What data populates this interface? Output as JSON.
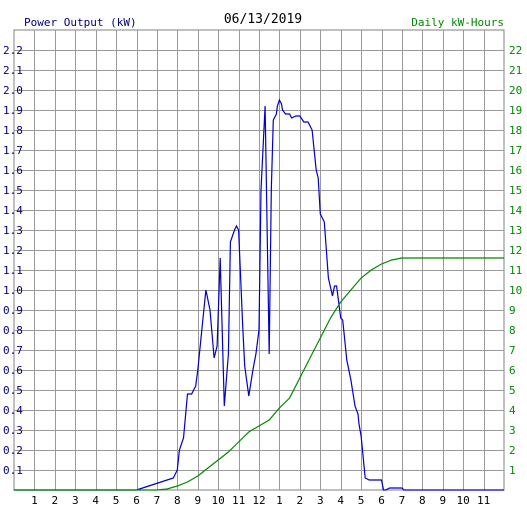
{
  "chart_data": {
    "type": "line",
    "title": "06/13/2019",
    "left_axis_label": "Power Output (kW)",
    "right_axis_label": "Daily kW-Hours",
    "x_ticks": [
      "1",
      "2",
      "3",
      "4",
      "5",
      "6",
      "7",
      "8",
      "9",
      "10",
      "11",
      "12",
      "1",
      "2",
      "3",
      "4",
      "5",
      "6",
      "7",
      "8",
      "9",
      "10",
      "11"
    ],
    "x_range": [
      0,
      24
    ],
    "y_left_ticks": [
      "0.1",
      "0.2",
      "0.3",
      "0.4",
      "0.5",
      "0.6",
      "0.7",
      "0.8",
      "0.9",
      "1.0",
      "1.1",
      "1.2",
      "1.3",
      "1.4",
      "1.5",
      "1.6",
      "1.7",
      "1.8",
      "1.9",
      "2.0",
      "2.1",
      "2.2"
    ],
    "y_left_range": [
      0,
      2.3
    ],
    "y_right_ticks": [
      "1",
      "2",
      "3",
      "4",
      "5",
      "6",
      "7",
      "8",
      "9",
      "10",
      "11",
      "12",
      "13",
      "14",
      "15",
      "16",
      "17",
      "18",
      "19",
      "20",
      "21",
      "22"
    ],
    "y_right_range": [
      0,
      23
    ],
    "grid": true,
    "colors": {
      "power": "#0000cc",
      "energy": "#008800",
      "left_label": "#000080",
      "right_label": "#008800",
      "title": "#000000",
      "grid": "#999999",
      "x_ticks": "#000000"
    },
    "series": [
      {
        "axis": "left",
        "x": [
          0,
          6.0,
          6.3,
          6.6,
          6.9,
          7.2,
          7.5,
          7.8,
          8.0,
          8.1,
          8.3,
          8.5,
          8.7,
          8.9,
          9.0,
          9.2,
          9.4,
          9.6,
          9.8,
          9.95,
          10.1,
          10.3,
          10.5,
          10.6,
          10.8,
          10.9,
          11.0,
          11.2,
          11.3,
          11.5,
          11.7,
          11.85,
          12.0,
          12.1,
          12.3,
          12.5,
          12.6,
          12.7,
          12.85,
          12.9,
          13.0,
          13.1,
          13.15,
          13.3,
          13.5,
          13.6,
          13.8,
          14.0,
          14.2,
          14.4,
          14.6,
          14.8,
          14.9,
          15.0,
          15.2,
          15.4,
          15.6,
          15.7,
          15.8,
          16.0,
          16.1,
          16.3,
          16.5,
          16.7,
          16.85,
          16.9,
          17.0,
          17.2,
          17.4,
          17.6,
          17.8,
          18.0,
          18.1,
          18.2,
          18.4,
          18.6,
          18.8,
          18.9,
          19.0,
          19.1,
          19.9,
          20.1,
          21.0,
          21.9,
          24
        ],
        "y": [
          0,
          0,
          0.01,
          0.02,
          0.03,
          0.04,
          0.05,
          0.06,
          0.1,
          0.2,
          0.26,
          0.48,
          0.48,
          0.52,
          0.6,
          0.8,
          1.0,
          0.9,
          0.66,
          0.72,
          1.16,
          0.42,
          0.68,
          1.24,
          1.3,
          1.32,
          1.3,
          0.82,
          0.62,
          0.47,
          0.6,
          0.68,
          0.8,
          1.5,
          1.92,
          0.68,
          1.5,
          1.85,
          1.88,
          1.92,
          1.95,
          1.93,
          1.9,
          1.88,
          1.88,
          1.86,
          1.87,
          1.87,
          1.84,
          1.84,
          1.8,
          1.6,
          1.56,
          1.38,
          1.34,
          1.06,
          0.97,
          1.02,
          1.02,
          0.86,
          0.85,
          0.65,
          0.55,
          0.42,
          0.38,
          0.33,
          0.27,
          0.06,
          0.05,
          0.05,
          0.05,
          0.05,
          0,
          0,
          0.01,
          0.01,
          0.01,
          0.01,
          0.01,
          0,
          0,
          0,
          0,
          0,
          0
        ]
      },
      {
        "axis": "right",
        "x": [
          0,
          7.0,
          7.5,
          8.0,
          8.5,
          9.0,
          9.5,
          10.0,
          10.5,
          11.0,
          11.5,
          12.0,
          12.5,
          13.0,
          13.5,
          14.0,
          14.5,
          15.0,
          15.5,
          16.0,
          16.5,
          17.0,
          17.5,
          18.0,
          18.5,
          19.0,
          19.3,
          19.5,
          20.0,
          24
        ],
        "y": [
          0,
          0,
          0.05,
          0.2,
          0.4,
          0.7,
          1.1,
          1.5,
          1.9,
          2.4,
          2.9,
          3.2,
          3.5,
          4.1,
          4.6,
          5.6,
          6.6,
          7.6,
          8.6,
          9.4,
          10.0,
          10.6,
          11.0,
          11.3,
          11.5,
          11.6,
          11.6,
          11.6,
          11.6,
          11.6
        ]
      }
    ]
  }
}
